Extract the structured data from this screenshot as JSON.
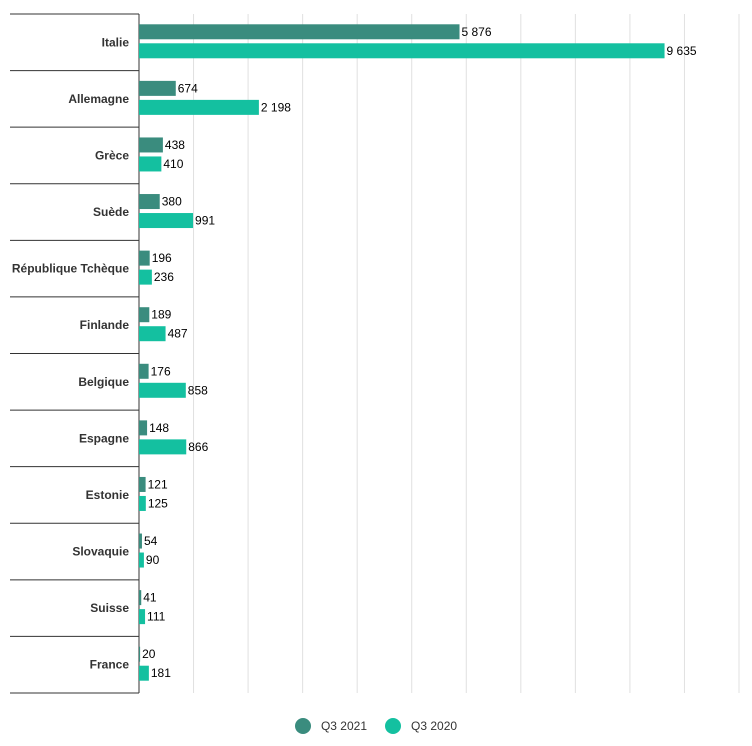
{
  "chart_data": {
    "type": "bar",
    "orientation": "horizontal",
    "categories": [
      "Italie",
      "Allemagne",
      "Grèce",
      "Suède",
      "République Tchèque",
      "Finlande",
      "Belgique",
      "Espagne",
      "Estonie",
      "Slovaquie",
      "Suisse",
      "France"
    ],
    "series": [
      {
        "name": "Q3 2021",
        "color": "#3a8c7e",
        "values": [
          5876,
          674,
          438,
          380,
          196,
          189,
          176,
          148,
          121,
          54,
          41,
          20
        ],
        "labels": [
          "5 876",
          "674",
          "438",
          "380",
          "196",
          "189",
          "176",
          "148",
          "121",
          "54",
          "41",
          "20"
        ]
      },
      {
        "name": "Q3 2020",
        "color": "#14c0a0",
        "values": [
          9635,
          2198,
          410,
          991,
          236,
          487,
          858,
          866,
          125,
          90,
          111,
          181
        ],
        "labels": [
          "9 635",
          "2 198",
          "410",
          "991",
          "236",
          "487",
          "858",
          "866",
          "125",
          "90",
          "111",
          "181"
        ]
      }
    ],
    "xlim": [
      0,
      11000
    ],
    "grid": true,
    "legend": "bottom-center"
  }
}
